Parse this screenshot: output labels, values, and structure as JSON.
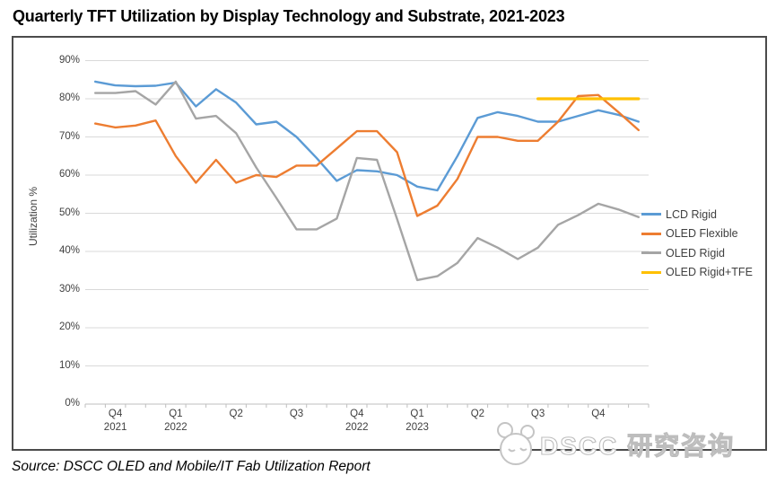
{
  "title": "Quarterly TFT Utilization by Display Technology and Substrate, 2021-2023",
  "source": "Source: DSCC OLED and Mobile/IT Fab Utilization Report",
  "watermark": {
    "text": "DSCC 研究咨询",
    "logo": "panda-logo"
  },
  "chart_data": {
    "type": "line",
    "title": "Quarterly TFT Utilization by Display Technology and Substrate, 2021-2023",
    "grid": true,
    "legend_position": "right-inside",
    "n_points": 28,
    "y_axis": {
      "title": "Utilization %",
      "min": 0,
      "max": 90,
      "ticks": [
        {
          "value": 90,
          "label": "90%"
        },
        {
          "value": 80,
          "label": "80%"
        },
        {
          "value": 70,
          "label": "70%"
        },
        {
          "value": 60,
          "label": "60%"
        },
        {
          "value": 50,
          "label": "50%"
        },
        {
          "value": 40,
          "label": "40%"
        },
        {
          "value": 30,
          "label": "30%"
        },
        {
          "value": 20,
          "label": "20%"
        },
        {
          "value": 10,
          "label": "10%"
        },
        {
          "value": 0,
          "label": "0%"
        }
      ]
    },
    "x_axis": {
      "tick_labels": [
        {
          "label": "Q4",
          "sub": "2021",
          "index": 1
        },
        {
          "label": "Q1",
          "sub": "2022",
          "index": 4
        },
        {
          "label": "Q2",
          "sub": "",
          "index": 7
        },
        {
          "label": "Q3",
          "sub": "",
          "index": 10
        },
        {
          "label": "Q4",
          "sub": "2022",
          "index": 13
        },
        {
          "label": "Q1",
          "sub": "2023",
          "index": 16
        },
        {
          "label": "Q2",
          "sub": "",
          "index": 19
        },
        {
          "label": "Q3",
          "sub": "",
          "index": 22
        },
        {
          "label": "Q4",
          "sub": "",
          "index": 25
        }
      ]
    },
    "series": [
      {
        "name": "LCD Rigid",
        "color": "#5B9BD5",
        "values": [
          84.5,
          83.5,
          83.3,
          83.4,
          84.2,
          78,
          82.5,
          79,
          73.3,
          74,
          70,
          64.5,
          58.5,
          61.3,
          61,
          60,
          57,
          56,
          65,
          75,
          76.5,
          75.5,
          74,
          74,
          75.5,
          77,
          75.8,
          74
        ]
      },
      {
        "name": "OLED Flexible",
        "color": "#ED7D31",
        "values": [
          73.5,
          72.5,
          73,
          74.3,
          65,
          58,
          64,
          58,
          60,
          59.5,
          62.5,
          62.5,
          67,
          71.5,
          71.5,
          66,
          49.3,
          52,
          59,
          70,
          70,
          69,
          69,
          74,
          80.7,
          81,
          76.5,
          71.8
        ]
      },
      {
        "name": "OLED Rigid",
        "color": "#A5A5A5",
        "values": [
          81.5,
          81.5,
          82,
          78.5,
          84.5,
          74.8,
          75.5,
          71,
          62,
          54,
          45.8,
          45.8,
          48.6,
          64.5,
          64,
          48.5,
          32.5,
          33.5,
          37,
          43.5,
          41,
          38,
          41,
          47,
          49.5,
          52.5,
          51,
          49
        ]
      },
      {
        "name": "OLED Rigid+TFE",
        "color": "#FFC000",
        "values": [
          null,
          null,
          null,
          null,
          null,
          null,
          null,
          null,
          null,
          null,
          null,
          null,
          null,
          null,
          null,
          null,
          null,
          null,
          null,
          null,
          null,
          null,
          80,
          80,
          80,
          80,
          80,
          80
        ]
      }
    ],
    "colors": {
      "gridline": "#d9d9d9",
      "axis": "#bfbfbf",
      "text": "#3f3f3f",
      "border": "#4b4b4b"
    }
  }
}
